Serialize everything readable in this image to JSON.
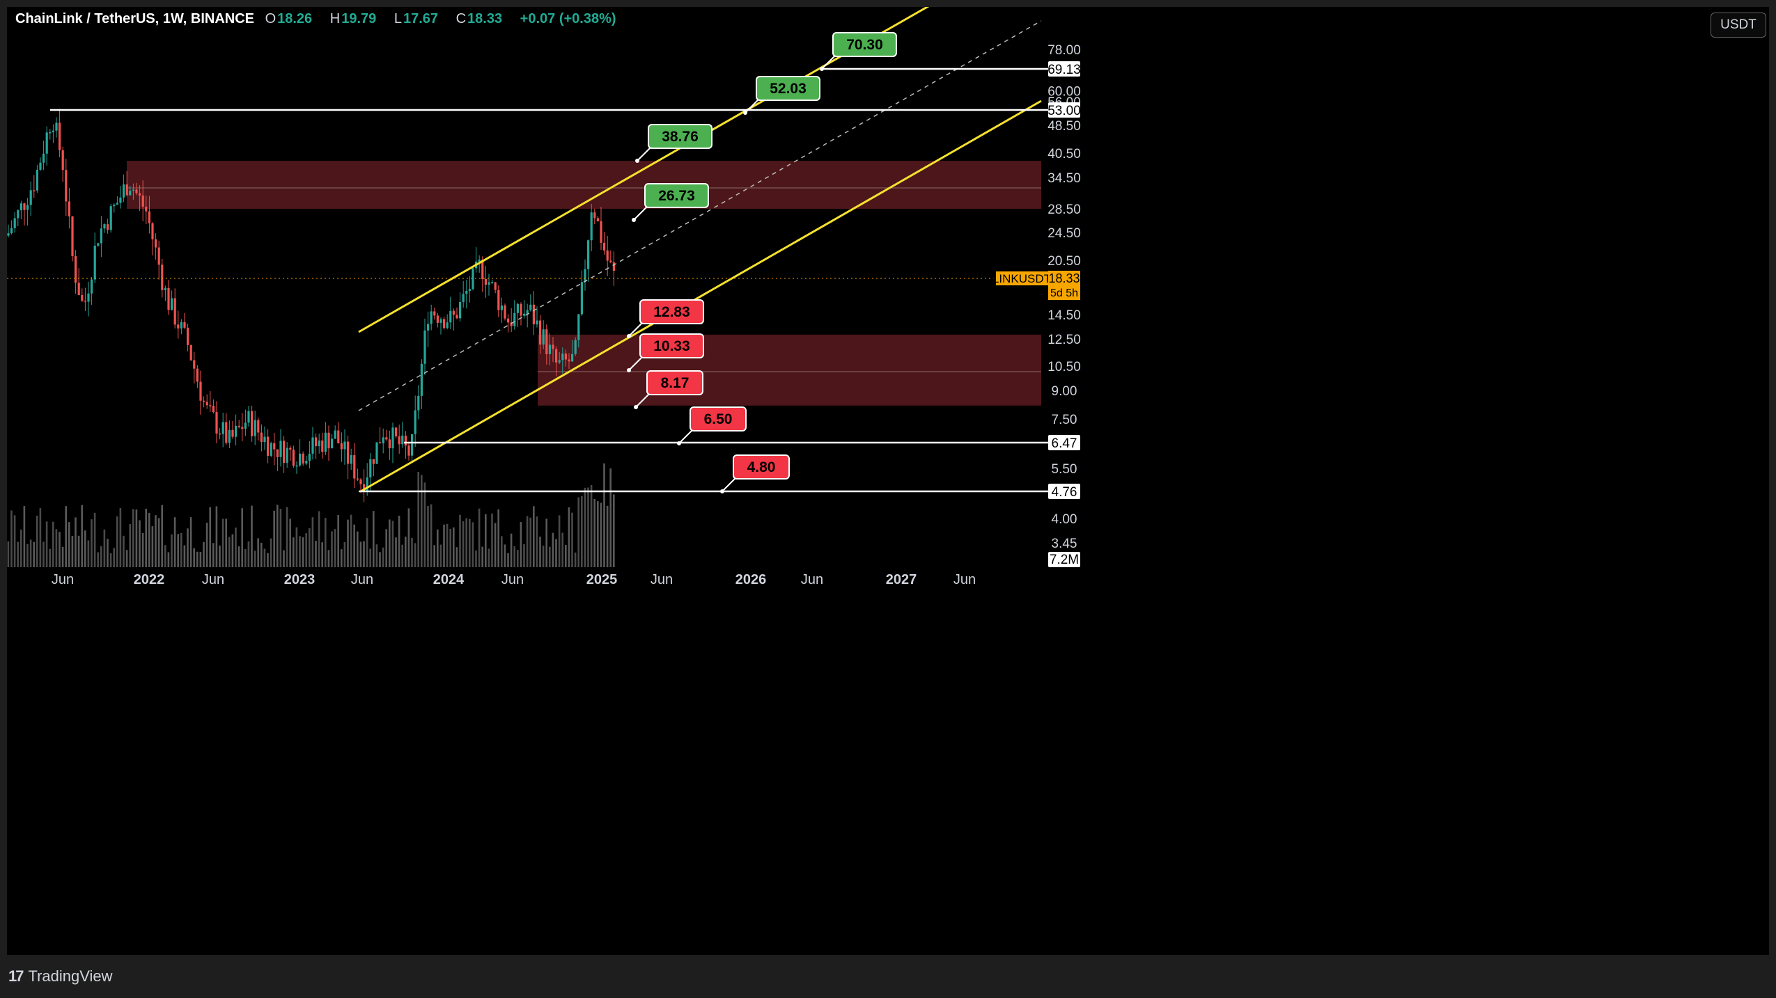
{
  "header": {
    "symbol": "ChainLink / TetherUS, 1W, BINANCE",
    "open_k": "O",
    "open": "18.26",
    "high_k": "H",
    "high": "19.79",
    "low_k": "L",
    "low": "17.67",
    "close_k": "C",
    "close": "18.33",
    "change": "+0.07 (+0.38%)"
  },
  "currency_button": "USDT",
  "brand": "TradingView",
  "chart_data": {
    "type": "candlestick",
    "price_axis_ticks": [
      "78.00",
      "69.13",
      "60.00",
      "56.00",
      "53.00",
      "48.50",
      "40.50",
      "34.50",
      "28.50",
      "24.50",
      "20.50",
      "14.50",
      "12.50",
      "10.50",
      "9.00",
      "7.50",
      "6.47",
      "5.50",
      "4.76",
      "4.00",
      "3.45",
      "7.2M"
    ],
    "time_axis_ticks": [
      "Jun",
      "2022",
      "Jun",
      "2023",
      "Jun",
      "2024",
      "Jun",
      "2025",
      "Jun",
      "2026",
      "Jun",
      "2027",
      "Jun"
    ],
    "last_price": {
      "label": "LINKUSDT",
      "value": "18.33",
      "countdown": "5d 5h"
    },
    "horizontal_levels": [
      {
        "price": "69.13",
        "color": "#ffffff"
      },
      {
        "price": "53.00",
        "color": "#ffffff"
      },
      {
        "price": "6.47",
        "color": "#ffffff"
      },
      {
        "price": "4.76",
        "color": "#ffffff"
      }
    ],
    "resistance_zone": {
      "from": "28.50",
      "to": "38.50",
      "color": "#5b1a1f"
    },
    "support_zone": {
      "from": "8.17",
      "to": "12.83",
      "color": "#5b1a1f"
    },
    "targets_green": [
      "70.30",
      "52.03",
      "38.76",
      "26.73"
    ],
    "targets_red": [
      "12.83",
      "10.33",
      "8.17",
      "6.50",
      "4.80"
    ],
    "volume_label": "7.2M",
    "channel_color": "#f5e12d"
  }
}
